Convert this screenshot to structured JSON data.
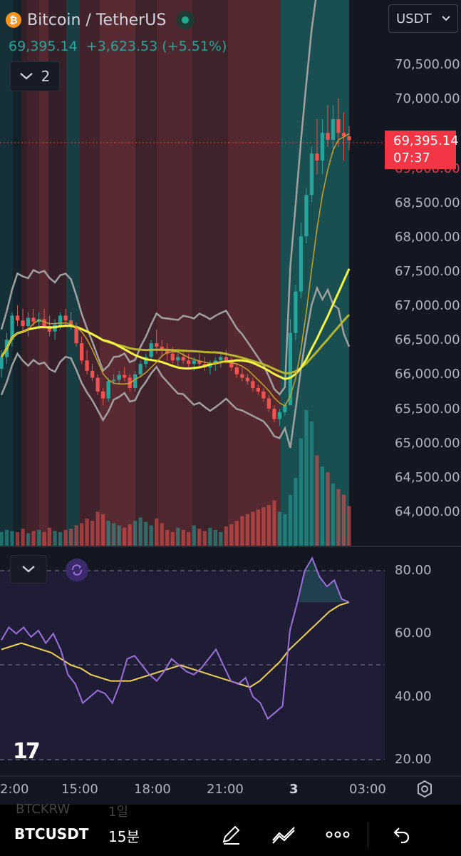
{
  "header": {
    "coin_symbol": "₿",
    "title": "Bitcoin / TetherUS",
    "last_price": "69,395.14",
    "change": "+3,623.53 (+5.51%)",
    "quote_currency": "USDT",
    "indicators_count": "2"
  },
  "price_tag": {
    "price": "69,395.14",
    "countdown": "07:37"
  },
  "price_axis": [
    "70,500.00",
    "70,000.00",
    "69,000.00",
    "68,500.00",
    "68,000.00",
    "67,500.00",
    "67,000.00",
    "66,500.00",
    "66,000.00",
    "65,500.00",
    "65,000.00",
    "64,500.00",
    "64,000.00"
  ],
  "rsi_axis": [
    "80.00",
    "60.00",
    "40.00",
    "20.00"
  ],
  "time_axis": [
    "2:00",
    "15:00",
    "18:00",
    "21:00",
    "3",
    "03:00"
  ],
  "logo": "17",
  "bottom_bar": {
    "pair_prev": "BTCKRW",
    "tf_prev": "1일",
    "pair": "BTCUSDT",
    "timeframe": "15분"
  },
  "colors": {
    "up": "#26a69a",
    "down": "#ef5350",
    "rsi": "#9c6fdc",
    "rsi_ma": "#f0d050",
    "bb": "#a0a0a0",
    "tag": "#f23645"
  },
  "chart_data": {
    "type": "candlestick",
    "interval": "15m",
    "ylim": [
      63800,
      70700
    ],
    "candles": [
      [
        66080,
        66350,
        65950,
        66250
      ],
      [
        66250,
        66600,
        66150,
        66500
      ],
      [
        66500,
        66900,
        66400,
        66850
      ],
      [
        66850,
        67000,
        66700,
        66780
      ],
      [
        66780,
        66950,
        66600,
        66700
      ],
      [
        66700,
        66900,
        66550,
        66820
      ],
      [
        66820,
        66950,
        66700,
        66760
      ],
      [
        66760,
        66900,
        66650,
        66800
      ],
      [
        66800,
        66950,
        66650,
        66700
      ],
      [
        66700,
        66850,
        66550,
        66620
      ],
      [
        66620,
        66800,
        66500,
        66720
      ],
      [
        66720,
        66900,
        66650,
        66850
      ],
      [
        66850,
        66950,
        66700,
        66780
      ],
      [
        66780,
        66900,
        66650,
        66700
      ],
      [
        66700,
        66750,
        66400,
        66450
      ],
      [
        66450,
        66550,
        66150,
        66200
      ],
      [
        66200,
        66350,
        66000,
        66050
      ],
      [
        66050,
        66150,
        65900,
        65950
      ],
      [
        65950,
        66000,
        65700,
        65750
      ],
      [
        65750,
        65800,
        65550,
        65650
      ],
      [
        65650,
        65950,
        65600,
        65900
      ],
      [
        65900,
        66000,
        65850,
        65920
      ],
      [
        65920,
        66050,
        65850,
        65990
      ],
      [
        65990,
        66100,
        65900,
        65950
      ],
      [
        65950,
        66000,
        65750,
        65800
      ],
      [
        65800,
        66050,
        65750,
        66000
      ],
      [
        66000,
        66200,
        65950,
        66150
      ],
      [
        66150,
        66300,
        66100,
        66250
      ],
      [
        66250,
        66500,
        66200,
        66450
      ],
      [
        66450,
        66650,
        66300,
        66400
      ],
      [
        66400,
        66500,
        66250,
        66350
      ],
      [
        66350,
        66450,
        66200,
        66300
      ],
      [
        66300,
        66400,
        66150,
        66200
      ],
      [
        66200,
        66350,
        66100,
        66250
      ],
      [
        66250,
        66350,
        66150,
        66200
      ],
      [
        66200,
        66300,
        66100,
        66150
      ],
      [
        66150,
        66250,
        66050,
        66200
      ],
      [
        66200,
        66300,
        66100,
        66150
      ],
      [
        66150,
        66250,
        66050,
        66100
      ],
      [
        66100,
        66200,
        66000,
        66150
      ],
      [
        66150,
        66250,
        66050,
        66200
      ],
      [
        66200,
        66300,
        66100,
        66250
      ],
      [
        66250,
        66350,
        66150,
        66200
      ],
      [
        66200,
        66250,
        66050,
        66100
      ],
      [
        66100,
        66150,
        65950,
        66000
      ],
      [
        66000,
        66100,
        65900,
        65950
      ],
      [
        65950,
        66000,
        65850,
        65900
      ],
      [
        65900,
        65950,
        65750,
        65800
      ],
      [
        65800,
        65850,
        65700,
        65750
      ],
      [
        65750,
        65800,
        65600,
        65650
      ],
      [
        65650,
        65700,
        65450,
        65500
      ],
      [
        65500,
        65550,
        65300,
        65350
      ],
      [
        65350,
        65500,
        65250,
        65450
      ],
      [
        65450,
        65600,
        65400,
        65550
      ],
      [
        65550,
        66800,
        65550,
        66600
      ],
      [
        66600,
        67300,
        66500,
        67200
      ],
      [
        67200,
        68200,
        67100,
        68000
      ],
      [
        68000,
        68700,
        67900,
        68600
      ],
      [
        68600,
        69300,
        68500,
        69200
      ],
      [
        69200,
        69700,
        68900,
        69100
      ],
      [
        69100,
        69700,
        68900,
        69500
      ],
      [
        69500,
        69900,
        69300,
        69400
      ],
      [
        69400,
        69900,
        69200,
        69700
      ],
      [
        69700,
        70000,
        69300,
        69500
      ],
      [
        69500,
        69800,
        69100,
        69450
      ],
      [
        69450,
        69600,
        69250,
        69395
      ]
    ],
    "volume": [
      12,
      14,
      13,
      12,
      15,
      11,
      13,
      14,
      12,
      16,
      13,
      12,
      14,
      15,
      18,
      20,
      24,
      22,
      30,
      28,
      22,
      20,
      18,
      16,
      19,
      22,
      25,
      21,
      18,
      24,
      20,
      14,
      12,
      16,
      14,
      12,
      18,
      15,
      13,
      16,
      14,
      12,
      17,
      19,
      22,
      26,
      28,
      30,
      32,
      34,
      36,
      40,
      30,
      28,
      45,
      60,
      95,
      120,
      110,
      80,
      70,
      65,
      55,
      50,
      45,
      35
    ],
    "rsi": {
      "ylim": [
        20,
        85
      ],
      "values": [
        58,
        62,
        60,
        62,
        59,
        61,
        57,
        60,
        55,
        47,
        44,
        38,
        40,
        42,
        41,
        38,
        44,
        52,
        53,
        50,
        47,
        45,
        48,
        52,
        50,
        48,
        47,
        49,
        52,
        55,
        50,
        45,
        44,
        46,
        40,
        38,
        33,
        35,
        37,
        61,
        70,
        80,
        84,
        78,
        75,
        77,
        71,
        70
      ],
      "ma": [
        55,
        56,
        57,
        56,
        55,
        54,
        52,
        50,
        49,
        47,
        46,
        45,
        45,
        45,
        46,
        47,
        48,
        49,
        50,
        49,
        48,
        47,
        46,
        45,
        44,
        43,
        45,
        48,
        51,
        55,
        58,
        61,
        64,
        67,
        69,
        70
      ]
    },
    "price_levels": [
      "70,500.00",
      "70,000.00",
      "69,000.00",
      "68,500.00",
      "68,000.00",
      "67,500.00",
      "67,000.00",
      "66,500.00",
      "66,000.00",
      "65,500.00",
      "65,000.00",
      "64,500.00",
      "64,000.00"
    ]
  }
}
